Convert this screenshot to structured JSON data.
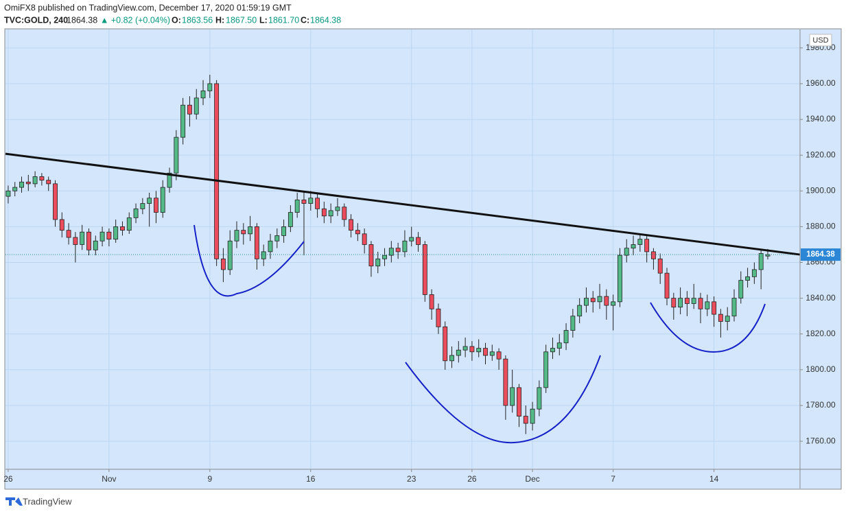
{
  "header": {
    "published": "OmiFX8 published on TradingView.com, December 17, 2020 01:59:19 GMT",
    "symbol": "TVC:GOLD, 240",
    "last": "1864.38",
    "change": "▲ +0.82 (+0.04%)",
    "o_label": "O:",
    "o": "1863.56",
    "h_label": "H:",
    "h": "1867.50",
    "l_label": "L:",
    "l": "1861.70",
    "c_label": "C:",
    "c": "1864.38"
  },
  "footer": {
    "brand": "TradingView"
  },
  "chart_data": {
    "type": "candlestick",
    "currency": "USD",
    "up_color": "#53b987",
    "down_color": "#eb4d5c",
    "grid": true,
    "ylim": [
      1744.3,
      1990.3
    ],
    "yticks": [
      {
        "value": 1760,
        "label": "1760.00"
      },
      {
        "value": 1780,
        "label": "1780.00"
      },
      {
        "value": 1800,
        "label": "1800.00"
      },
      {
        "value": 1820,
        "label": "1820.00"
      },
      {
        "value": 1840,
        "label": "1840.00"
      },
      {
        "value": 1860,
        "label": "1860.00"
      },
      {
        "value": 1880,
        "label": "1880.00"
      },
      {
        "value": 1900,
        "label": "1900.00"
      },
      {
        "value": 1920,
        "label": "1920.00"
      },
      {
        "value": 1940,
        "label": "1940.00"
      },
      {
        "value": 1960,
        "label": "1960.00"
      },
      {
        "value": 1980,
        "label": "1980.00"
      }
    ],
    "xlim": [
      -0.4,
      117.8
    ],
    "xticks": [
      {
        "value": 0,
        "label": "26"
      },
      {
        "value": 15,
        "label": "Nov"
      },
      {
        "value": 30,
        "label": "9"
      },
      {
        "value": 45,
        "label": "16"
      },
      {
        "value": 60,
        "label": "23"
      },
      {
        "value": 69,
        "label": "26"
      },
      {
        "value": 78,
        "label": "Dec"
      },
      {
        "value": 90,
        "label": "7"
      },
      {
        "value": 105,
        "label": "14"
      }
    ],
    "trendline": {
      "x": [
        -0.4,
        117.8
      ],
      "y": [
        1920.8,
        1864.4
      ]
    },
    "candles": [
      [
        1897,
        1903,
        1893,
        1900
      ],
      [
        1900,
        1905,
        1897,
        1902
      ],
      [
        1902,
        1908,
        1899,
        1905
      ],
      [
        1905,
        1909,
        1900,
        1904
      ],
      [
        1904,
        1911,
        1902,
        1908
      ],
      [
        1908,
        1910,
        1903,
        1906
      ],
      [
        1906,
        1908,
        1900,
        1904
      ],
      [
        1904,
        1906,
        1880,
        1884
      ],
      [
        1884,
        1888,
        1874,
        1878
      ],
      [
        1878,
        1882,
        1870,
        1874
      ],
      [
        1874,
        1877,
        1860,
        1870
      ],
      [
        1870,
        1881,
        1867,
        1877
      ],
      [
        1877,
        1879,
        1864,
        1867
      ],
      [
        1867,
        1875,
        1864,
        1872
      ],
      [
        1872,
        1880,
        1869,
        1877
      ],
      [
        1877,
        1879,
        1869,
        1873
      ],
      [
        1873,
        1884,
        1871,
        1880
      ],
      [
        1880,
        1883,
        1875,
        1878
      ],
      [
        1878,
        1888,
        1876,
        1885
      ],
      [
        1885,
        1893,
        1882,
        1890
      ],
      [
        1890,
        1896,
        1887,
        1893
      ],
      [
        1893,
        1899,
        1880,
        1896
      ],
      [
        1896,
        1900,
        1882,
        1888
      ],
      [
        1888,
        1906,
        1885,
        1902
      ],
      [
        1902,
        1913,
        1899,
        1910
      ],
      [
        1910,
        1934,
        1906,
        1930
      ],
      [
        1930,
        1952,
        1926,
        1948
      ],
      [
        1948,
        1953,
        1936,
        1943
      ],
      [
        1943,
        1957,
        1940,
        1952
      ],
      [
        1952,
        1962,
        1948,
        1956
      ],
      [
        1956,
        1965,
        1952,
        1960
      ],
      [
        1960,
        1962,
        1858,
        1862
      ],
      [
        1862,
        1868,
        1849,
        1856
      ],
      [
        1856,
        1878,
        1853,
        1872
      ],
      [
        1872,
        1883,
        1868,
        1878
      ],
      [
        1878,
        1882,
        1870,
        1876
      ],
      [
        1876,
        1886,
        1872,
        1880
      ],
      [
        1880,
        1882,
        1856,
        1862
      ],
      [
        1862,
        1870,
        1858,
        1866
      ],
      [
        1866,
        1876,
        1862,
        1872
      ],
      [
        1872,
        1879,
        1868,
        1875
      ],
      [
        1875,
        1884,
        1871,
        1880
      ],
      [
        1880,
        1892,
        1877,
        1888
      ],
      [
        1888,
        1899,
        1885,
        1895
      ],
      [
        1895,
        1900,
        1864,
        1893
      ],
      [
        1893,
        1900,
        1889,
        1896
      ],
      [
        1896,
        1899,
        1885,
        1890
      ],
      [
        1890,
        1894,
        1882,
        1886
      ],
      [
        1886,
        1893,
        1882,
        1889
      ],
      [
        1889,
        1896,
        1886,
        1891
      ],
      [
        1891,
        1893,
        1880,
        1884
      ],
      [
        1884,
        1887,
        1874,
        1878
      ],
      [
        1878,
        1882,
        1872,
        1876
      ],
      [
        1876,
        1879,
        1865,
        1870
      ],
      [
        1870,
        1872,
        1852,
        1858
      ],
      [
        1858,
        1866,
        1854,
        1862
      ],
      [
        1862,
        1868,
        1858,
        1864
      ],
      [
        1864,
        1872,
        1860,
        1868
      ],
      [
        1868,
        1871,
        1862,
        1866
      ],
      [
        1866,
        1878,
        1863,
        1872
      ],
      [
        1872,
        1880,
        1869,
        1874
      ],
      [
        1874,
        1877,
        1866,
        1870
      ],
      [
        1870,
        1872,
        1838,
        1842
      ],
      [
        1842,
        1845,
        1828,
        1834
      ],
      [
        1834,
        1837,
        1820,
        1824
      ],
      [
        1824,
        1827,
        1800,
        1805
      ],
      [
        1805,
        1813,
        1801,
        1808
      ],
      [
        1808,
        1816,
        1804,
        1811
      ],
      [
        1811,
        1818,
        1807,
        1813
      ],
      [
        1813,
        1816,
        1805,
        1810
      ],
      [
        1810,
        1817,
        1807,
        1812
      ],
      [
        1812,
        1815,
        1803,
        1808
      ],
      [
        1808,
        1814,
        1805,
        1810
      ],
      [
        1810,
        1812,
        1800,
        1806
      ],
      [
        1806,
        1808,
        1772,
        1780
      ],
      [
        1780,
        1800,
        1776,
        1790
      ],
      [
        1790,
        1792,
        1768,
        1774
      ],
      [
        1774,
        1780,
        1764,
        1770
      ],
      [
        1770,
        1782,
        1766,
        1778
      ],
      [
        1778,
        1794,
        1774,
        1790
      ],
      [
        1790,
        1814,
        1787,
        1810
      ],
      [
        1810,
        1818,
        1806,
        1812
      ],
      [
        1812,
        1820,
        1808,
        1815
      ],
      [
        1815,
        1826,
        1811,
        1822
      ],
      [
        1822,
        1834,
        1818,
        1830
      ],
      [
        1830,
        1840,
        1826,
        1836
      ],
      [
        1836,
        1846,
        1832,
        1840
      ],
      [
        1840,
        1844,
        1832,
        1838
      ],
      [
        1838,
        1848,
        1834,
        1841
      ],
      [
        1841,
        1845,
        1828,
        1836
      ],
      [
        1836,
        1842,
        1822,
        1838
      ],
      [
        1838,
        1868,
        1835,
        1864
      ],
      [
        1864,
        1873,
        1860,
        1868
      ],
      [
        1868,
        1875,
        1864,
        1870
      ],
      [
        1870,
        1876,
        1866,
        1873
      ],
      [
        1873,
        1875,
        1860,
        1866
      ],
      [
        1866,
        1868,
        1856,
        1862
      ],
      [
        1862,
        1865,
        1848,
        1854
      ],
      [
        1854,
        1857,
        1836,
        1840
      ],
      [
        1840,
        1843,
        1828,
        1835
      ],
      [
        1835,
        1846,
        1831,
        1840
      ],
      [
        1840,
        1844,
        1830,
        1837
      ],
      [
        1837,
        1848,
        1834,
        1840
      ],
      [
        1840,
        1843,
        1826,
        1834
      ],
      [
        1834,
        1842,
        1830,
        1838
      ],
      [
        1838,
        1841,
        1824,
        1831
      ],
      [
        1831,
        1834,
        1818,
        1827
      ],
      [
        1827,
        1835,
        1822,
        1830
      ],
      [
        1830,
        1845,
        1827,
        1840
      ],
      [
        1840,
        1855,
        1837,
        1850
      ],
      [
        1850,
        1857,
        1846,
        1852
      ],
      [
        1852,
        1860,
        1848,
        1856
      ],
      [
        1856,
        1867,
        1845,
        1865
      ],
      [
        1863.56,
        1867.5,
        1861.7,
        1864.38
      ]
    ]
  }
}
